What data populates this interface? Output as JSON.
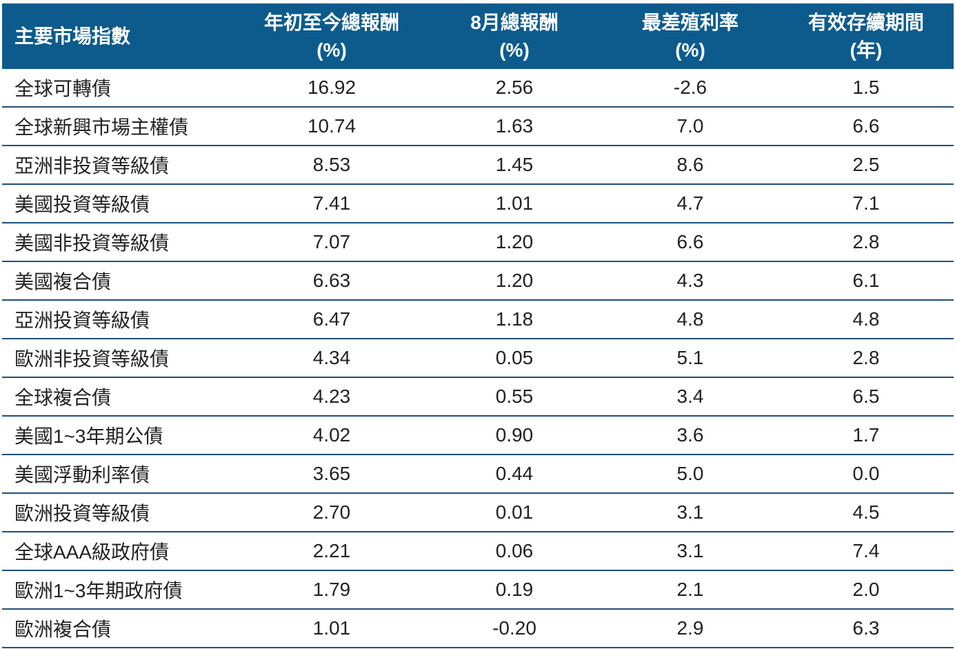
{
  "table": {
    "header": [
      [
        "主要市場指數"
      ],
      [
        "年初至今總報酬",
        "(%)"
      ],
      [
        "8月總報酬",
        "(%)"
      ],
      [
        "最差殖利率",
        "(%)"
      ],
      [
        "有效存續期間",
        "(年)"
      ]
    ],
    "rows": [
      [
        "全球可轉債",
        "16.92",
        "2.56",
        "-2.6",
        "1.5"
      ],
      [
        "全球新興市場主權債",
        "10.74",
        "1.63",
        "7.0",
        "6.6"
      ],
      [
        "亞洲非投資等級債",
        "8.53",
        "1.45",
        "8.6",
        "2.5"
      ],
      [
        "美國投資等級債",
        "7.41",
        "1.01",
        "4.7",
        "7.1"
      ],
      [
        "美國非投資等級債",
        "7.07",
        "1.20",
        "6.6",
        "2.8"
      ],
      [
        "美國複合債",
        "6.63",
        "1.20",
        "4.3",
        "6.1"
      ],
      [
        "亞洲投資等級債",
        "6.47",
        "1.18",
        "4.8",
        "4.8"
      ],
      [
        "歐洲非投資等級債",
        "4.34",
        "0.05",
        "5.1",
        "2.8"
      ],
      [
        "全球複合債",
        "4.23",
        "0.55",
        "3.4",
        "6.5"
      ],
      [
        "美國1~3年期公債",
        "4.02",
        "0.90",
        "3.6",
        "1.7"
      ],
      [
        "美國浮動利率債",
        "3.65",
        "0.44",
        "5.0",
        "0.0"
      ],
      [
        "歐洲投資等級債",
        "2.70",
        "0.01",
        "3.1",
        "4.5"
      ],
      [
        "全球AAA級政府債",
        "2.21",
        "0.06",
        "3.1",
        "7.4"
      ],
      [
        "歐洲1~3年期政府債",
        "1.79",
        "0.19",
        "2.1",
        "2.0"
      ],
      [
        "歐洲複合債",
        "1.01",
        "-0.20",
        "2.9",
        "6.3"
      ]
    ]
  }
}
